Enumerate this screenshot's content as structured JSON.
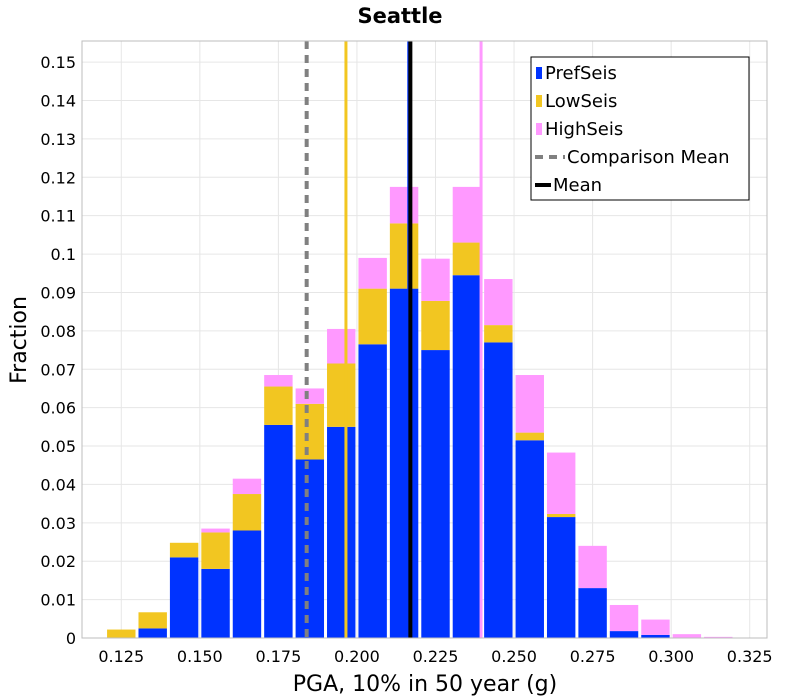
{
  "chart_data": {
    "type": "bar",
    "stacked": true,
    "title": "Seattle",
    "xlabel": "PGA, 10% in 50 year (g)",
    "ylabel": "Fraction",
    "xlim": [
      0.1125,
      0.3305
    ],
    "ylim": [
      0,
      0.1555
    ],
    "grid": true,
    "bin_width": 0.01,
    "x_ticks": [
      0.125,
      0.15,
      0.175,
      0.2,
      0.225,
      0.25,
      0.275,
      0.3,
      0.325
    ],
    "x_tick_labels": [
      "0.125",
      "0.150",
      "0.175",
      "0.200",
      "0.225",
      "0.250",
      "0.275",
      "0.300",
      "0.325"
    ],
    "y_ticks": [
      0,
      0.01,
      0.02,
      0.03,
      0.04,
      0.05,
      0.06,
      0.07,
      0.08,
      0.09,
      0.1,
      0.11,
      0.12,
      0.13,
      0.14,
      0.15
    ],
    "y_tick_labels": [
      "0",
      "0.01",
      "0.02",
      "0.03",
      "0.04",
      "0.05",
      "0.06",
      "0.07",
      "0.08",
      "0.09",
      "0.1",
      "0.11",
      "0.12",
      "0.13",
      "0.14",
      "0.15"
    ],
    "x": [
      0.125,
      0.135,
      0.145,
      0.155,
      0.165,
      0.175,
      0.185,
      0.195,
      0.205,
      0.215,
      0.225,
      0.235,
      0.245,
      0.255,
      0.265,
      0.275,
      0.285,
      0.295,
      0.305,
      0.315
    ],
    "series": [
      {
        "name": "PrefSeis",
        "color": "#0033ff",
        "values": [
          0,
          0.0025,
          0.021,
          0.018,
          0.028,
          0.0555,
          0.0465,
          0.055,
          0.0765,
          0.091,
          0.075,
          0.0945,
          0.077,
          0.0515,
          0.0315,
          0.013,
          0.0018,
          0.0008,
          0,
          0
        ]
      },
      {
        "name": "LowSeis",
        "color": "#f2c621",
        "values": [
          0.0022,
          0.0042,
          0.0038,
          0.0095,
          0.0095,
          0.01,
          0.0145,
          0.0165,
          0.0145,
          0.017,
          0.0128,
          0.0085,
          0.0045,
          0.002,
          0.0008,
          0,
          0,
          0,
          0,
          0
        ]
      },
      {
        "name": "HighSeis",
        "color": "#ff99ff",
        "values": [
          0,
          0,
          0,
          0.001,
          0.004,
          0.003,
          0.004,
          0.009,
          0.008,
          0.0095,
          0.011,
          0.0145,
          0.012,
          0.015,
          0.016,
          0.011,
          0.0068,
          0.004,
          0.001,
          0.0003
        ]
      }
    ],
    "vertical_lines": [
      {
        "name": "LowSeis mean",
        "x": 0.1965,
        "color": "#f2c621",
        "style": "solid",
        "in_legend": false
      },
      {
        "name": "PrefSeis mean",
        "x": 0.2165,
        "color": "#0033ff",
        "style": "solid",
        "in_legend": false
      },
      {
        "name": "HighSeis mean",
        "x": 0.2395,
        "color": "#ff99ff",
        "style": "solid",
        "in_legend": false
      },
      {
        "name": "Comparison Mean",
        "x": 0.184,
        "color": "#808080",
        "style": "dashed",
        "in_legend": true
      },
      {
        "name": "Mean",
        "x": 0.217,
        "color": "#000000",
        "style": "solid",
        "in_legend": true
      }
    ],
    "legend": {
      "position": "top-right",
      "items": [
        {
          "label": "PrefSeis",
          "kind": "box",
          "color": "#0033ff"
        },
        {
          "label": "LowSeis",
          "kind": "box",
          "color": "#f2c621"
        },
        {
          "label": "HighSeis",
          "kind": "box",
          "color": "#ff99ff"
        },
        {
          "label": "Comparison Mean",
          "kind": "dashed-line",
          "color": "#808080"
        },
        {
          "label": "Mean",
          "kind": "line",
          "color": "#000000"
        }
      ]
    }
  }
}
